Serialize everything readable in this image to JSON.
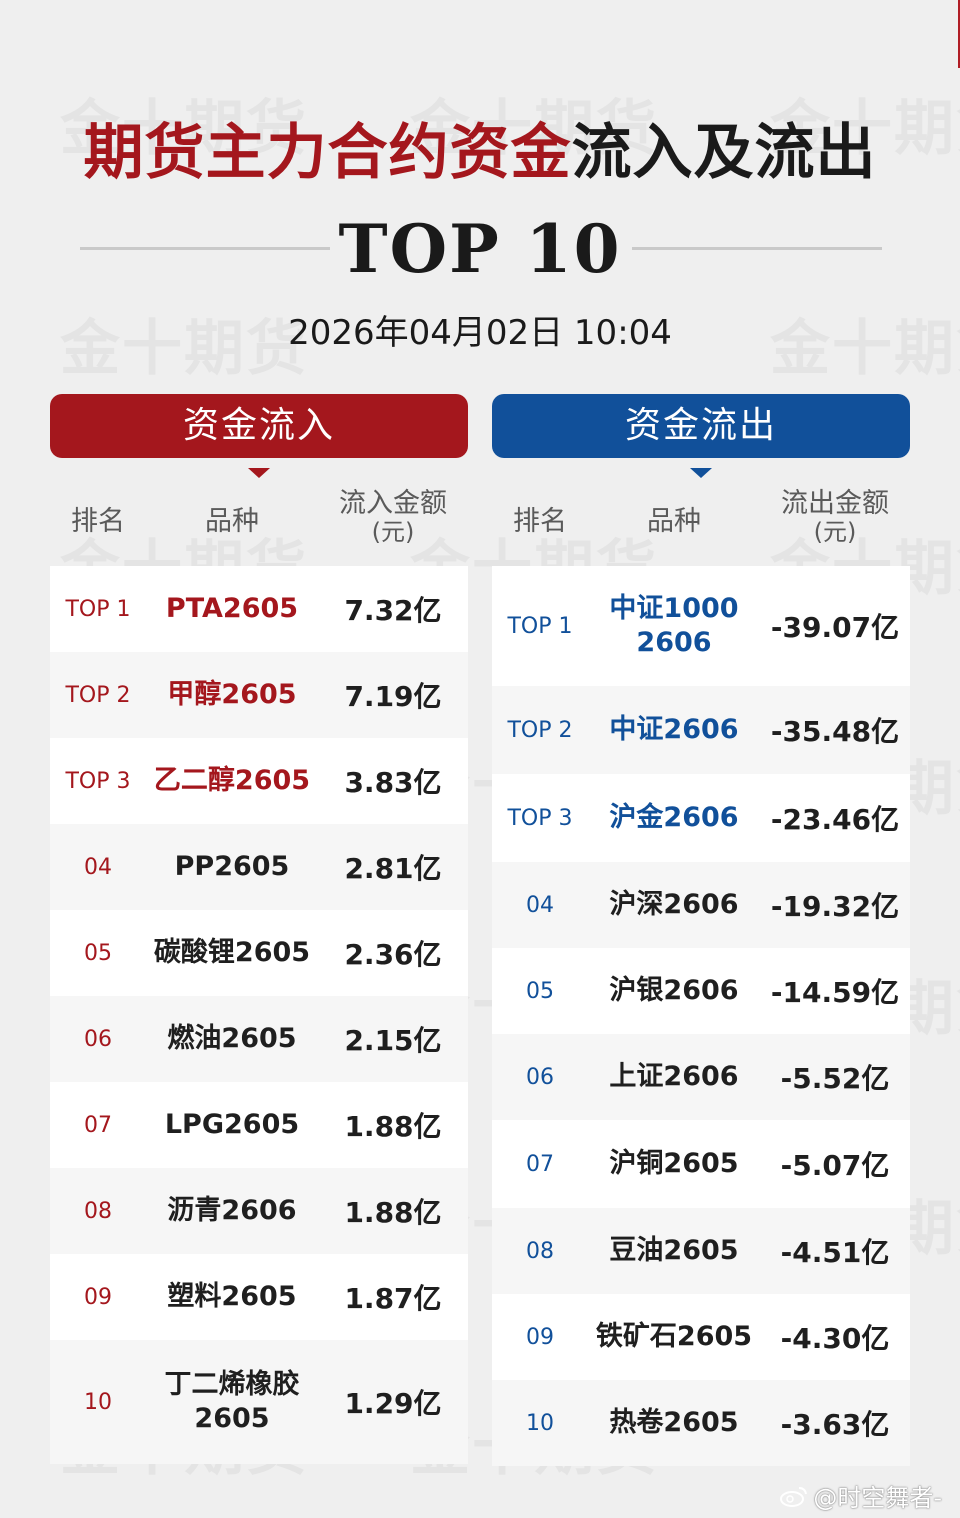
{
  "title": {
    "red_part": "期货主力合约资金",
    "black_part": "流入及流出"
  },
  "subtitle": "TOP 10",
  "datetime": "2026年04月02日 10:04",
  "watermark": "金十期货",
  "colors": {
    "inflow_red": "#a4171d",
    "outflow_blue": "#11509a"
  },
  "inflow": {
    "header": "资金流入",
    "col_rank": "排名",
    "col_name": "品种",
    "col_amount": "流入金额",
    "col_unit": "(元)",
    "rows": [
      {
        "rank": "TOP 1",
        "name": "PTA2605",
        "amount": "7.32亿"
      },
      {
        "rank": "TOP 2",
        "name": "甲醇2605",
        "amount": "7.19亿"
      },
      {
        "rank": "TOP 3",
        "name": "乙二醇2605",
        "amount": "3.83亿"
      },
      {
        "rank": "04",
        "name": "PP2605",
        "amount": "2.81亿"
      },
      {
        "rank": "05",
        "name": "碳酸锂2605",
        "amount": "2.36亿"
      },
      {
        "rank": "06",
        "name": "燃油2605",
        "amount": "2.15亿"
      },
      {
        "rank": "07",
        "name": "LPG2605",
        "amount": "1.88亿"
      },
      {
        "rank": "08",
        "name": "沥青2606",
        "amount": "1.88亿"
      },
      {
        "rank": "09",
        "name": "塑料2605",
        "amount": "1.87亿"
      },
      {
        "rank": "10",
        "name": "丁二烯橡胶\n2605",
        "amount": "1.29亿"
      }
    ]
  },
  "outflow": {
    "header": "资金流出",
    "col_rank": "排名",
    "col_name": "品种",
    "col_amount": "流出金额",
    "col_unit": "(元)",
    "rows": [
      {
        "rank": "TOP 1",
        "name": "中证1000\n2606",
        "amount": "-39.07亿"
      },
      {
        "rank": "TOP 2",
        "name": "中证2606",
        "amount": "-35.48亿"
      },
      {
        "rank": "TOP 3",
        "name": "沪金2606",
        "amount": "-23.46亿"
      },
      {
        "rank": "04",
        "name": "沪深2606",
        "amount": "-19.32亿"
      },
      {
        "rank": "05",
        "name": "沪银2606",
        "amount": "-14.59亿"
      },
      {
        "rank": "06",
        "name": "上证2606",
        "amount": "-5.52亿"
      },
      {
        "rank": "07",
        "name": "沪铜2605",
        "amount": "-5.07亿"
      },
      {
        "rank": "08",
        "name": "豆油2605",
        "amount": "-4.51亿"
      },
      {
        "rank": "09",
        "name": "铁矿石2605",
        "amount": "-4.30亿"
      },
      {
        "rank": "10",
        "name": "热卷2605",
        "amount": "-3.63亿"
      }
    ]
  },
  "footer": {
    "icon": "weibo-icon",
    "handle": "@时空舞者-"
  }
}
